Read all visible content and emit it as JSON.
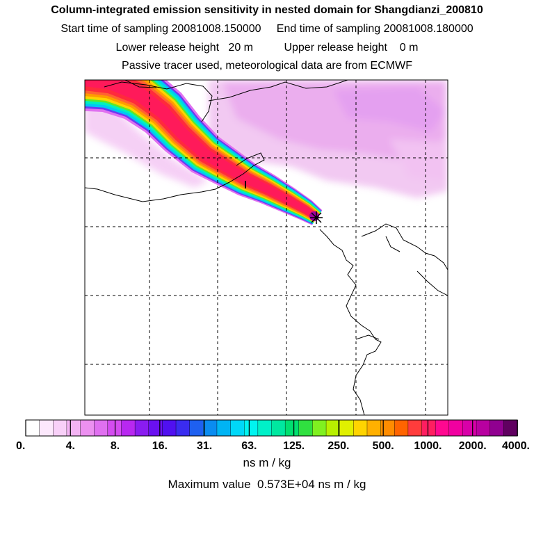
{
  "header": {
    "title": "Column-integrated emission sensitivity in nested domain for Shangdianzi_200810",
    "line1": "Start time of sampling 20081008.150000     End time of sampling 20081008.180000",
    "line2": "Lower release height   20 m          Upper release height    0 m",
    "line3": "Passive tracer used, meteorological data are from ECMWF"
  },
  "chart_data": {
    "type": "heatmap",
    "title": "Column-integrated emission sensitivity in nested domain for Shangdianzi_200810",
    "colorbar": {
      "tick_labels": [
        "0.",
        "4.",
        "8.",
        "16.",
        "31.",
        "63.",
        "125.",
        "250.",
        "500.",
        "1000.",
        "2000.",
        "4000."
      ],
      "colors": [
        "#ffffff",
        "#fce8fc",
        "#f8d0f8",
        "#f4b4f4",
        "#ec90f0",
        "#e070f0",
        "#d44cf0",
        "#b828f0",
        "#8a1cf0",
        "#6a10f0",
        "#5010f0",
        "#3a2cf0",
        "#1e60f0",
        "#0a8cf0",
        "#00b4f4",
        "#00d8f8",
        "#00f4f0",
        "#00f0c8",
        "#00e8a0",
        "#00e070",
        "#30e040",
        "#80f020",
        "#b8f000",
        "#e0f000",
        "#ffd400",
        "#ffb000",
        "#ff8c00",
        "#ff6400",
        "#ff3c3c",
        "#ff1e60",
        "#ff0890",
        "#f000a0",
        "#d800a8",
        "#b800a0",
        "#900090",
        "#600060"
      ],
      "units": "ns m / kg",
      "maximum_text": "Maximum value  0.573E+04 ns m / kg",
      "maximum_value": 5730
    },
    "grid": true,
    "release_site_marker": "star",
    "features": [
      "sensitivity-plume",
      "background-sensitivity",
      "coastlines",
      "borders"
    ]
  },
  "icons": {
    "release_site": "asterisk-star-icon"
  }
}
